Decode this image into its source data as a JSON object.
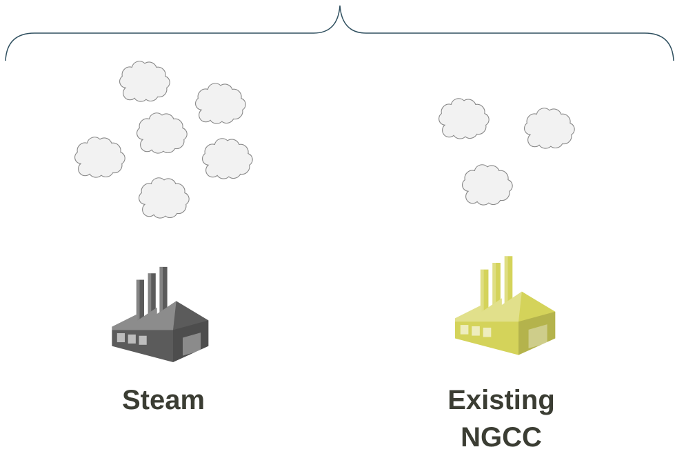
{
  "nodes": [
    {
      "label": "Steam"
    },
    {
      "label": "Existing NGCC"
    }
  ]
}
